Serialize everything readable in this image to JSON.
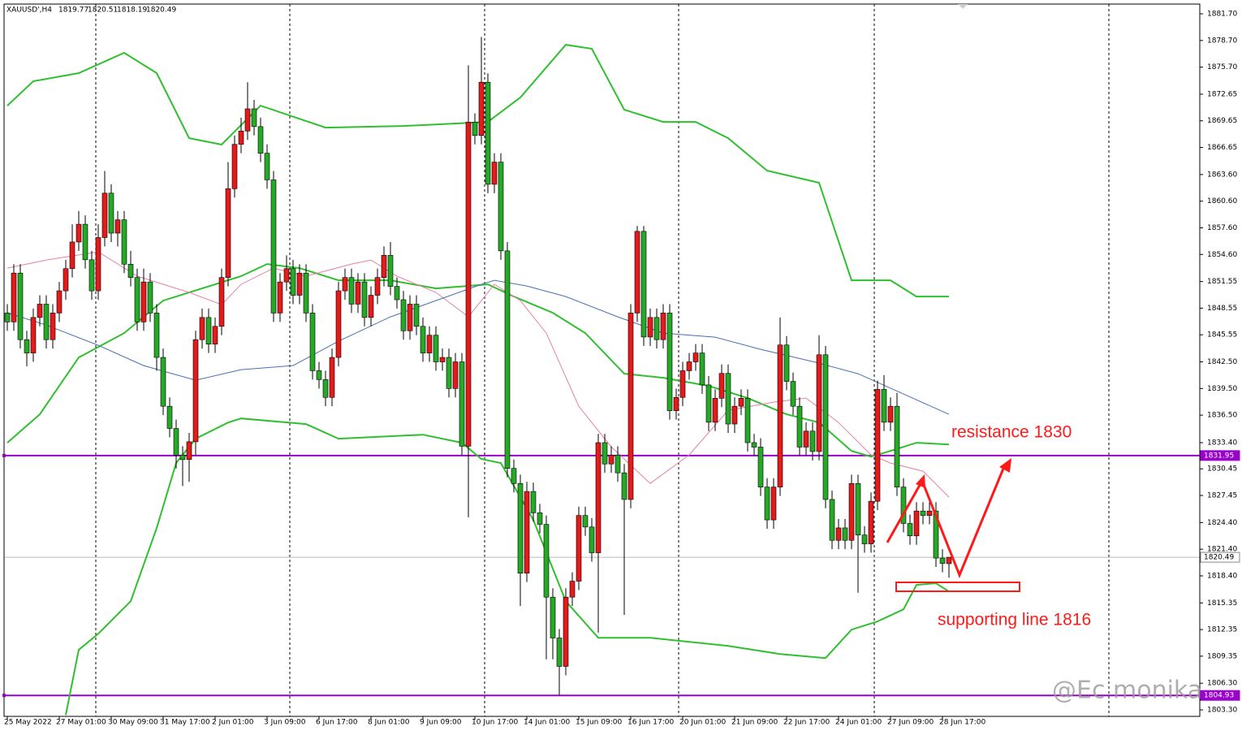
{
  "chart_data": {
    "type": "candlestick",
    "title": "XAUUSD',H4",
    "categories": [
      "25 May 2022",
      null,
      null,
      null,
      null,
      null,
      null,
      null,
      "27 May 01:00",
      null,
      null,
      null,
      null,
      null,
      null,
      null,
      "30 May 09:00",
      null,
      null,
      null,
      null,
      null,
      null,
      null,
      "31 May 17:00",
      null,
      null,
      null,
      null,
      null,
      null,
      null,
      "2 Jun 01:00",
      null,
      null,
      null,
      null,
      null,
      null,
      null,
      "3 Jun 09:00",
      null,
      null,
      null,
      null,
      null,
      null,
      null,
      "6 Jun 17:00",
      null,
      null,
      null,
      null,
      null,
      null,
      null,
      "8 Jun 01:00",
      null,
      null,
      null,
      null,
      null,
      null,
      null,
      "9 Jun 09:00",
      null,
      null,
      null,
      null,
      null,
      null,
      null,
      "10 Jun 17:00",
      null,
      null,
      null,
      null,
      null,
      null,
      null,
      "14 Jun 01:00",
      null,
      null,
      null,
      null,
      null,
      null,
      null,
      "15 Jun 09:00",
      null,
      null,
      null,
      null,
      null,
      null,
      null,
      "16 Jun 17:00",
      null,
      null,
      null,
      null,
      null,
      null,
      null,
      "20 Jun 01:00",
      null,
      null,
      null,
      null,
      null,
      null,
      null,
      "21 Jun 09:00",
      null,
      null,
      null,
      null,
      null,
      null,
      null,
      "22 Jun 17:00",
      null,
      null,
      null,
      null,
      null,
      null,
      null,
      "24 Jun 01:00",
      null,
      null,
      null,
      null,
      null,
      null,
      null,
      "27 Jun 09:00",
      null,
      null,
      null,
      null,
      null,
      null,
      null,
      "28 Jun 17:00",
      null
    ],
    "open": [
      1848,
      1847,
      1852.5,
      1845,
      1843.5,
      1847.5,
      1849,
      1845,
      1848,
      1850.5,
      1853,
      1856,
      1858,
      1854,
      1850.5,
      1856.5,
      1861.5,
      1857,
      1858.5,
      1853.5,
      1852,
      1847,
      1851.5,
      1848,
      1843,
      1837.5,
      1835,
      1832,
      1831.5,
      1833.5,
      1845,
      1847.5,
      1844.5,
      1846.5,
      1852,
      1862,
      1867,
      1868.5,
      1871,
      1869,
      1866,
      1863,
      1848,
      1851.5,
      1853,
      1850,
      1852.5,
      1848,
      1841.5,
      1840.5,
      1838.5,
      1843,
      1850.5,
      1852,
      1849,
      1851.5,
      1847.5,
      1850,
      1852,
      1854.5,
      1851,
      1849.5,
      1846,
      1849,
      1846.5,
      1843.5,
      1845.5,
      1842.5,
      1843,
      1839.5,
      1842.5,
      1833,
      1869.5,
      1868,
      1874,
      1862.5,
      1865,
      1855,
      1830.5,
      1828.8,
      1818.7,
      1827.9,
      1825.5,
      1824.2,
      1816,
      1811.4,
      1808.2,
      1816,
      1817.8,
      1825.2,
      1823.9,
      1821,
      1833.4,
      1831,
      1832,
      1830,
      1827,
      1848,
      1857.2,
      1845.3,
      1847.5,
      1845,
      1848,
      1837,
      1838.5,
      1841.5,
      1842.5,
      1843.5,
      1839.9,
      1835.7,
      1838.4,
      1841.2,
      1835.5,
      1837.5,
      1838.4,
      1833.4,
      1832.9,
      1828.4,
      1824.7,
      1828.4,
      1844.4,
      1840.3,
      1837.5,
      1832.9,
      1834.7,
      1832.4,
      1843.3,
      1827,
      1822.4,
      1823.8,
      1822.4,
      1828.8,
      1823,
      1822,
      1826.8,
      1839.4,
      1835.7,
      1837.5,
      1828.4,
      1824.3,
      1822.9,
      1825.7,
      1825.2,
      1825.7,
      1820.4,
      1819.77
    ],
    "high": [
      1849,
      1853.5,
      1853.5,
      1846,
      1848.5,
      1850,
      1850,
      1849,
      1851.5,
      1854,
      1858,
      1859.5,
      1859,
      1855,
      1858,
      1864,
      1862.5,
      1859.5,
      1859.5,
      1855,
      1853,
      1853,
      1852.5,
      1849,
      1844,
      1838.5,
      1836,
      1833,
      1834.5,
      1846,
      1848.5,
      1848.5,
      1847.5,
      1853,
      1865,
      1868,
      1870,
      1874,
      1872,
      1870,
      1867,
      1864,
      1852.5,
      1854.5,
      1854,
      1853.5,
      1853.5,
      1849,
      1842.5,
      1841.5,
      1844,
      1851.5,
      1853,
      1853,
      1852.5,
      1852.5,
      1851,
      1853,
      1855.5,
      1856,
      1852,
      1850.5,
      1850,
      1850,
      1847.5,
      1846.5,
      1846.5,
      1844,
      1844,
      1843.5,
      1843.5,
      1875.9,
      1870.5,
      1879.1,
      1875,
      1866,
      1866,
      1856,
      1831.5,
      1829.8,
      1829,
      1828.9,
      1826.5,
      1825.2,
      1817,
      1812.4,
      1817,
      1818.8,
      1826.2,
      1826.2,
      1824.9,
      1834.4,
      1834.4,
      1833,
      1833,
      1831,
      1849,
      1857.8,
      1857.8,
      1848.5,
      1848.5,
      1849,
      1849,
      1839.5,
      1842.5,
      1843.5,
      1844.5,
      1844.5,
      1840.9,
      1839.4,
      1842.2,
      1842.2,
      1838.5,
      1839.4,
      1839.4,
      1834.4,
      1833.9,
      1829.4,
      1829.4,
      1847.5,
      1845.4,
      1841.3,
      1838.5,
      1835.7,
      1835.7,
      1845.5,
      1844.3,
      1828,
      1824.8,
      1824.8,
      1829.8,
      1829.8,
      1824,
      1827.8,
      1840.4,
      1841,
      1838.5,
      1839,
      1829.4,
      1825.3,
      1826.7,
      1826.7,
      1826.7,
      1826.7,
      1821.4,
      1820.51
    ],
    "low": [
      1846,
      1846,
      1844,
      1842,
      1842.5,
      1846.5,
      1844,
      1844,
      1847,
      1849.5,
      1852,
      1855,
      1853,
      1849.5,
      1849.5,
      1855.5,
      1856,
      1855.5,
      1852.5,
      1851,
      1846,
      1846,
      1847,
      1841.5,
      1836.5,
      1834,
      1830.5,
      1828.5,
      1829,
      1832,
      1844,
      1843.5,
      1843.5,
      1845.5,
      1851,
      1861,
      1866,
      1867.5,
      1868,
      1865,
      1862,
      1847,
      1847,
      1850.5,
      1849,
      1849,
      1847,
      1840.5,
      1839.5,
      1837.5,
      1837.5,
      1842,
      1849.5,
      1848,
      1848,
      1846.5,
      1846.5,
      1849,
      1851,
      1850,
      1848.5,
      1845,
      1845,
      1845.5,
      1842.5,
      1842.5,
      1841.5,
      1841.5,
      1838.5,
      1838.5,
      1832,
      1825,
      1867,
      1867,
      1861.5,
      1861.5,
      1854,
      1829.5,
      1827.8,
      1815,
      1817.7,
      1824.5,
      1823.2,
      1809,
      1809,
      1805,
      1807.2,
      1815,
      1816.8,
      1822.9,
      1820,
      1812,
      1830,
      1830,
      1829,
      1814,
      1826,
      1847,
      1844.3,
      1844.3,
      1844,
      1844,
      1836,
      1836,
      1837.5,
      1840.5,
      1841.5,
      1838.9,
      1834.7,
      1834.7,
      1837.4,
      1834.5,
      1834.5,
      1836.5,
      1832.4,
      1831.9,
      1827.4,
      1823.7,
      1823.7,
      1827.4,
      1839.3,
      1836.5,
      1831.9,
      1831.9,
      1831.4,
      1831.4,
      1826,
      1821.4,
      1821.4,
      1821.4,
      1821.4,
      1816.5,
      1821,
      1821,
      1825.8,
      1834.7,
      1834.7,
      1827.4,
      1823.3,
      1821.9,
      1821.9,
      1824.2,
      1824.2,
      1819.4,
      1818.8,
      1818.19
    ],
    "close": [
      1847,
      1852.5,
      1845,
      1843.5,
      1847.5,
      1849,
      1845,
      1848,
      1850.5,
      1853,
      1856,
      1858,
      1854,
      1850.5,
      1856.5,
      1861.5,
      1857,
      1858.5,
      1853.5,
      1852,
      1847,
      1851.5,
      1848,
      1843,
      1837.5,
      1835,
      1832,
      1831.5,
      1833.5,
      1845,
      1847.5,
      1844.5,
      1846.5,
      1852,
      1862,
      1867,
      1868.5,
      1871,
      1869,
      1866,
      1863,
      1848,
      1851.5,
      1853,
      1850,
      1852.5,
      1848,
      1841.5,
      1840.5,
      1838.5,
      1843,
      1850.5,
      1852,
      1849,
      1851.5,
      1847.5,
      1850,
      1852,
      1854.5,
      1851,
      1849.5,
      1846,
      1849,
      1846.5,
      1843.5,
      1845.5,
      1842.5,
      1843,
      1839.5,
      1842.5,
      1833,
      1869.5,
      1868,
      1874,
      1862.5,
      1865,
      1855,
      1830.5,
      1828.8,
      1818.7,
      1827.9,
      1825.5,
      1824.2,
      1816,
      1811.4,
      1808.2,
      1816,
      1817.8,
      1825.2,
      1823.9,
      1821,
      1833.4,
      1831,
      1832,
      1830,
      1827,
      1848,
      1857.2,
      1845.3,
      1847.5,
      1845,
      1848,
      1837,
      1838.5,
      1841.5,
      1842.5,
      1843.5,
      1839.9,
      1835.7,
      1838.4,
      1841.2,
      1835.5,
      1837.5,
      1838.4,
      1833.4,
      1832.9,
      1828.4,
      1824.7,
      1828.4,
      1844.4,
      1840.3,
      1837.5,
      1832.9,
      1834.7,
      1832.4,
      1843.3,
      1827,
      1822.4,
      1823.8,
      1822.4,
      1828.8,
      1823,
      1822,
      1826.8,
      1839.4,
      1835.7,
      1837.5,
      1828.4,
      1824.3,
      1822.9,
      1825.7,
      1825.2,
      1825.7,
      1820.4,
      1819.8,
      1820.49
    ],
    "up_color": "#e31b1b",
    "down_color": "#27a827",
    "overlays": [
      {
        "color": "#2fbf2f",
        "x": [
          0,
          4,
          11,
          18,
          23,
          28,
          33,
          39,
          49,
          61,
          74,
          79,
          86,
          90,
          95,
          101,
          106,
          111,
          117,
          125,
          130,
          136,
          140,
          145
        ],
        "values": [
          1871.36,
          1874.11,
          1875.02,
          1877.31,
          1875.02,
          1867.7,
          1866.97,
          1871.36,
          1868.89,
          1869.07,
          1869.53,
          1872.28,
          1878.22,
          1877.77,
          1870.9,
          1869.53,
          1869.53,
          1867.7,
          1864.04,
          1862.67,
          1851.69,
          1851.69,
          1849.86,
          1849.86
        ]
      },
      {
        "color": "#2fbf2f",
        "x": [
          0,
          5,
          11,
          18,
          24,
          30,
          36,
          40,
          45,
          51,
          59,
          66,
          74,
          78,
          84,
          89,
          95,
          101,
          108,
          114,
          120,
          125,
          130,
          133,
          136,
          140,
          145
        ],
        "values": [
          1833.39,
          1836.59,
          1843.0,
          1845.74,
          1849.4,
          1850.77,
          1852.15,
          1853.52,
          1853.06,
          1851.69,
          1851.69,
          1850.77,
          1851.23,
          1849.86,
          1848.03,
          1845.74,
          1841.17,
          1840.71,
          1839.79,
          1838.42,
          1836.59,
          1835.67,
          1832.47,
          1831.83,
          1832.47,
          1833.39,
          1833.2
        ]
      },
      {
        "color": "#2fbf2f",
        "x": [
          9,
          11,
          14,
          19,
          23,
          26,
          29,
          34,
          36,
          46,
          51,
          64,
          70,
          73,
          76,
          81,
          86,
          91,
          99,
          111,
          119,
          126,
          130,
          134,
          138,
          140,
          143,
          145
        ],
        "values": [
          1802.73,
          1810.06,
          1811.87,
          1815.54,
          1823.78,
          1831.1,
          1833.85,
          1835.67,
          1836.13,
          1835.49,
          1833.85,
          1834.3,
          1833.39,
          1831.56,
          1831.1,
          1824.7,
          1815.54,
          1811.42,
          1811.42,
          1810.51,
          1809.6,
          1809.14,
          1812.34,
          1813.26,
          1814.63,
          1817.38,
          1817.56,
          1816.64
        ]
      },
      {
        "color": "#e87fa8",
        "x": [
          0,
          6,
          14,
          20,
          28,
          33,
          36,
          41,
          46,
          53,
          56,
          60,
          66,
          71,
          75,
          79,
          83,
          88,
          93,
          99,
          105,
          111,
          118,
          123,
          128,
          133,
          136,
          141,
          145
        ],
        "values": [
          1853.06,
          1853.97,
          1854.89,
          1852.15,
          1850.32,
          1848.94,
          1851.23,
          1853.06,
          1852.15,
          1853.52,
          1853.97,
          1852.15,
          1850.32,
          1847.57,
          1851.23,
          1849.4,
          1845.74,
          1837.5,
          1832.93,
          1828.81,
          1832.02,
          1837.05,
          1837.96,
          1838.42,
          1835.67,
          1832.02,
          1831.1,
          1830.19,
          1827.26
        ]
      },
      {
        "color": "#4a6fb5",
        "x": [
          0,
          6,
          14,
          21,
          29,
          36,
          44,
          51,
          59,
          66,
          73,
          75,
          80,
          86,
          94,
          101,
          109,
          116,
          124,
          131,
          138,
          145
        ],
        "values": [
          1848.03,
          1846.65,
          1844.37,
          1842.08,
          1840.43,
          1841.62,
          1842.08,
          1844.83,
          1847.57,
          1849.4,
          1851.23,
          1851.69,
          1851.05,
          1849.86,
          1847.57,
          1845.74,
          1845.28,
          1843.91,
          1842.54,
          1841.17,
          1838.88,
          1836.59
        ]
      }
    ],
    "levels": [
      {
        "value": 1831.95,
        "color": "#9900cc"
      },
      {
        "value": 1804.93,
        "color": "#9900cc"
      }
    ],
    "xlim": [
      -0.5,
      183.625
    ],
    "ylim": [
      1802.57,
      1882.8
    ],
    "yticks": [
      {
        "value": 1881.7,
        "label": "1881.70"
      },
      {
        "value": 1878.7,
        "label": "1878.70"
      },
      {
        "value": 1875.7,
        "label": "1875.70"
      },
      {
        "value": 1872.65,
        "label": "1872.65"
      },
      {
        "value": 1869.65,
        "label": "1869.65"
      },
      {
        "value": 1866.65,
        "label": "1866.65"
      },
      {
        "value": 1863.6,
        "label": "1863.60"
      },
      {
        "value": 1860.6,
        "label": "1860.60"
      },
      {
        "value": 1857.6,
        "label": "1857.60"
      },
      {
        "value": 1854.6,
        "label": "1854.60"
      },
      1851.55,
      1848.55,
      1845.55,
      {
        "value": 1842.5,
        "label": "1842.50"
      },
      {
        "value": 1839.5,
        "label": "1839.50"
      },
      {
        "value": 1836.5,
        "label": "1836.50"
      },
      {
        "value": 1833.4,
        "label": "1833.40"
      },
      1830.45,
      1827.45,
      {
        "value": 1824.4,
        "label": "1824.40"
      },
      {
        "value": 1821.4,
        "label": "1821.40"
      },
      {
        "value": 1818.4,
        "label": "1818.40"
      },
      1815.35,
      1812.35,
      1809.35,
      {
        "value": 1806.3,
        "label": "1806.30"
      },
      {
        "value": 1803.3,
        "label": "1803.30"
      }
    ],
    "annotations": [
      "resistance 1830",
      "supporting line 1816"
    ],
    "watermark": "@Ec monika"
  }
}
